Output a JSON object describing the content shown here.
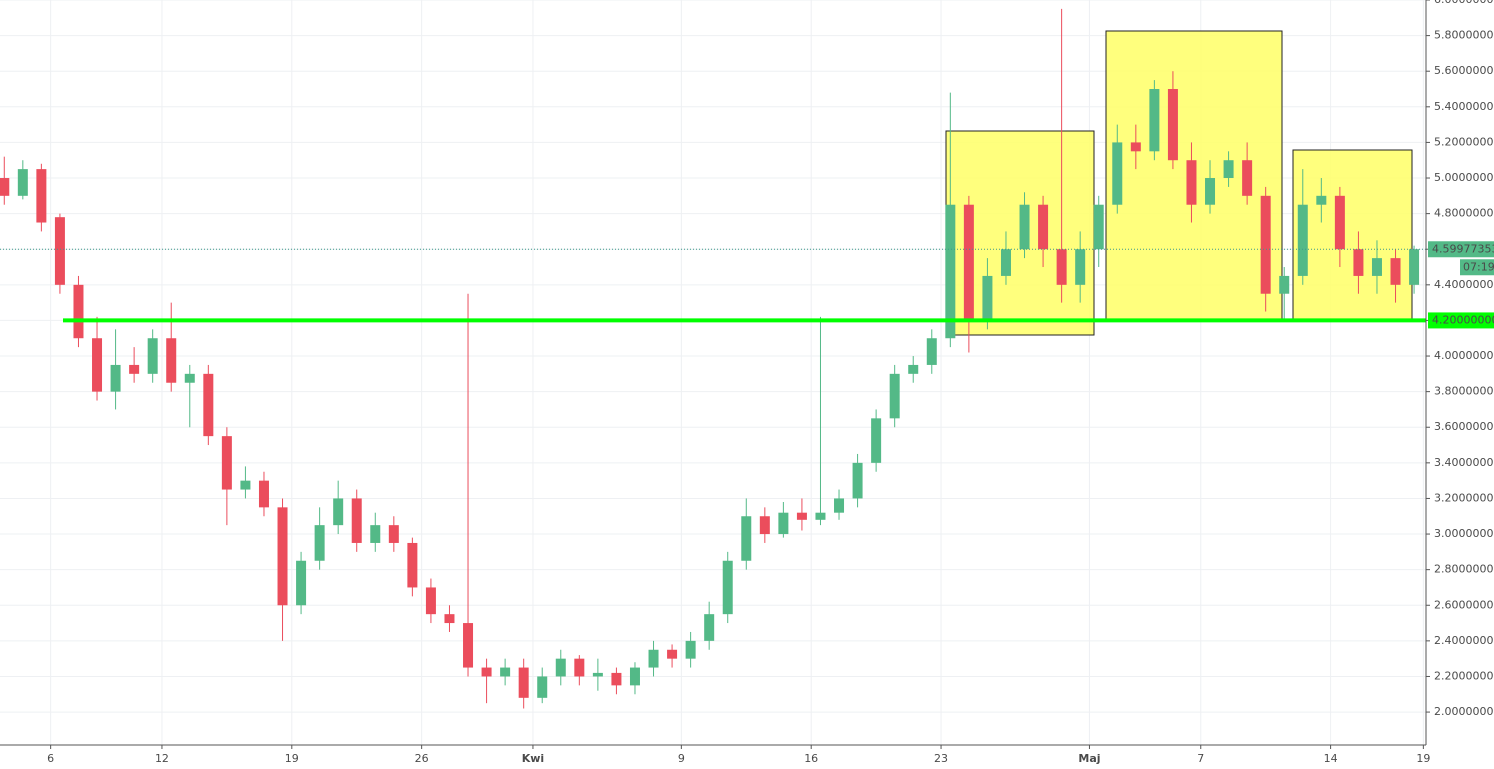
{
  "chart_data": {
    "type": "candlestick",
    "categories": [
      null,
      null,
      null,
      "6",
      null,
      null,
      null,
      null,
      null,
      "12",
      null,
      null,
      null,
      null,
      null,
      null,
      "19",
      null,
      null,
      null,
      null,
      null,
      null,
      "26",
      null,
      null,
      null,
      null,
      null,
      "Kwi",
      null,
      null,
      null,
      null,
      null,
      null,
      null,
      "9",
      null,
      null,
      null,
      null,
      null,
      null,
      "16",
      null,
      null,
      null,
      null,
      null,
      null,
      "23",
      null,
      null,
      null,
      null,
      null,
      null,
      null,
      "Maj",
      null,
      null,
      null,
      null,
      null,
      "7",
      null,
      null,
      null,
      null,
      null,
      null,
      "14",
      null,
      null,
      null,
      null,
      "19"
    ],
    "open": [
      5.0,
      4.9,
      5.05,
      4.78,
      4.4,
      4.1,
      3.8,
      3.95,
      3.9,
      4.1,
      3.85,
      3.9,
      3.55,
      3.25,
      3.3,
      3.15,
      2.6,
      2.85,
      3.05,
      3.2,
      2.95,
      3.05,
      2.95,
      2.7,
      2.55,
      2.5,
      2.25,
      2.2,
      2.25,
      2.08,
      2.2,
      2.3,
      2.2,
      2.22,
      2.15,
      2.25,
      2.35,
      2.3,
      2.4,
      2.55,
      2.85,
      3.1,
      3.0,
      3.12,
      3.08,
      3.12,
      3.2,
      3.4,
      3.65,
      3.9,
      3.95,
      4.1,
      4.85,
      4.2,
      4.45,
      4.6,
      4.85,
      4.6,
      4.4,
      4.6,
      4.85,
      5.2,
      5.15,
      5.5,
      5.1,
      4.85,
      5.0,
      5.1,
      4.9,
      4.35,
      4.45,
      4.85,
      4.9,
      4.6,
      4.45,
      4.55,
      4.4,
      null
    ],
    "high": [
      5.12,
      5.1,
      5.08,
      4.8,
      4.45,
      4.22,
      4.15,
      4.05,
      4.15,
      4.3,
      3.95,
      3.95,
      3.6,
      3.38,
      3.35,
      3.2,
      2.9,
      3.15,
      3.3,
      3.25,
      3.12,
      3.1,
      2.98,
      2.75,
      2.6,
      4.35,
      2.3,
      2.3,
      2.3,
      2.25,
      2.35,
      2.32,
      2.3,
      2.25,
      2.28,
      2.4,
      2.38,
      2.45,
      2.62,
      2.9,
      3.2,
      3.15,
      3.18,
      3.2,
      4.22,
      3.25,
      3.45,
      3.7,
      3.95,
      4.0,
      4.15,
      5.48,
      4.9,
      4.55,
      4.7,
      4.92,
      4.9,
      5.95,
      4.7,
      4.9,
      5.3,
      5.3,
      5.55,
      5.6,
      5.2,
      5.1,
      5.15,
      5.2,
      4.95,
      4.5,
      5.05,
      5.0,
      4.95,
      4.7,
      4.65,
      4.6,
      4.62,
      null
    ],
    "low": [
      4.85,
      4.88,
      4.7,
      4.35,
      4.05,
      3.75,
      3.7,
      3.85,
      3.85,
      3.8,
      3.6,
      3.5,
      3.05,
      3.2,
      3.1,
      2.4,
      2.55,
      2.8,
      3.0,
      2.9,
      2.9,
      2.9,
      2.65,
      2.5,
      2.45,
      2.2,
      2.05,
      2.15,
      2.02,
      2.05,
      2.15,
      2.15,
      2.12,
      2.1,
      2.1,
      2.2,
      2.25,
      2.25,
      2.35,
      2.5,
      2.8,
      2.95,
      2.98,
      3.02,
      3.05,
      3.08,
      3.15,
      3.35,
      3.6,
      3.85,
      3.9,
      4.05,
      4.02,
      4.15,
      4.4,
      4.55,
      4.5,
      4.3,
      4.3,
      4.5,
      4.8,
      5.05,
      5.1,
      5.05,
      4.75,
      4.8,
      4.95,
      4.85,
      4.25,
      4.2,
      4.4,
      4.75,
      4.5,
      4.35,
      4.35,
      4.3,
      4.35,
      null
    ],
    "close": [
      4.9,
      5.05,
      4.75,
      4.4,
      4.1,
      3.8,
      3.95,
      3.9,
      4.1,
      3.85,
      3.9,
      3.55,
      3.25,
      3.3,
      3.15,
      2.6,
      2.85,
      3.05,
      3.2,
      2.95,
      3.05,
      2.95,
      2.7,
      2.55,
      2.5,
      2.25,
      2.2,
      2.25,
      2.08,
      2.2,
      2.3,
      2.2,
      2.22,
      2.15,
      2.25,
      2.35,
      2.3,
      2.4,
      2.55,
      2.85,
      3.1,
      3.0,
      3.12,
      3.08,
      3.12,
      3.2,
      3.4,
      3.65,
      3.9,
      3.95,
      4.1,
      4.85,
      4.2,
      4.45,
      4.6,
      4.85,
      4.6,
      4.4,
      4.6,
      4.85,
      5.2,
      5.15,
      5.5,
      5.1,
      4.85,
      5.0,
      5.1,
      4.9,
      4.35,
      4.45,
      4.85,
      4.9,
      4.6,
      4.45,
      4.55,
      4.4,
      4.6,
      null
    ],
    "up_color": "#53b987",
    "down_color": "#eb4d5c",
    "ylim": [
      1.815,
      6.0
    ],
    "yticks": [
      {
        "value": 2,
        "label": "2.00000000"
      },
      {
        "value": 2.2,
        "label": "2.20000000"
      },
      {
        "value": 2.4,
        "label": "2.40000000"
      },
      {
        "value": 2.6,
        "label": "2.60000000"
      },
      {
        "value": 2.8,
        "label": "2.80000000"
      },
      {
        "value": 3,
        "label": "3.00000000"
      },
      {
        "value": 3.2,
        "label": "3.20000000"
      },
      {
        "value": 3.4,
        "label": "3.40000000"
      },
      {
        "value": 3.6,
        "label": "3.60000000"
      },
      {
        "value": 3.8,
        "label": "3.80000000"
      },
      {
        "value": 4,
        "label": "4.00000000"
      },
      {
        "value": 4.2,
        "label": "4.20000000"
      },
      {
        "value": 4.4,
        "label": "4.40000000"
      },
      {
        "value": 4.6,
        "label": "4.60000000"
      },
      {
        "value": 4.8,
        "label": "4.80000000"
      },
      {
        "value": 5,
        "label": "5.00000000"
      },
      {
        "value": 5.2,
        "label": "5.20000000"
      },
      {
        "value": 5.4,
        "label": "5.40000000"
      },
      {
        "value": 5.6,
        "label": "5.60000000"
      },
      {
        "value": 5.8,
        "label": "5.80000000"
      },
      {
        "value": 6,
        "label": "6.00000000"
      }
    ],
    "grid": true,
    "level": {
      "value": 4.2,
      "label": "4.20000000",
      "color": "#00ff00"
    },
    "last_price": 4.59977353,
    "countdown": "07:19"
  }
}
